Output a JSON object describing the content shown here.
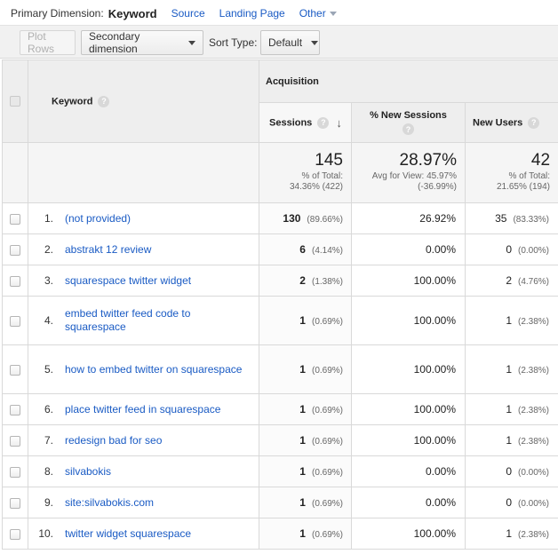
{
  "primary_dimension": {
    "label": "Primary Dimension:",
    "current": "Keyword",
    "links": [
      "Source",
      "Landing Page"
    ],
    "other": "Other"
  },
  "toolbar": {
    "plot_rows": "Plot Rows",
    "secondary_dimension": "Secondary dimension",
    "sort_type_label": "Sort Type:",
    "sort_type_value": "Default"
  },
  "headers": {
    "keyword": "Keyword",
    "group": "Acquisition",
    "sessions": "Sessions",
    "new_sessions": "% New Sessions",
    "new_users": "New Users",
    "help": "?"
  },
  "totals": {
    "sessions": "145",
    "sessions_sub1": "% of Total:",
    "sessions_sub2": "34.36% (422)",
    "new_sessions": "28.97%",
    "new_sessions_sub1": "Avg for View: 45.97%",
    "new_sessions_sub2": "(-36.99%)",
    "new_users": "42",
    "new_users_sub1": "% of Total:",
    "new_users_sub2": "21.65% (194)"
  },
  "rows": [
    {
      "idx": "1.",
      "keyword": "(not provided)",
      "sessions": "130",
      "sessions_pct": "(89.66%)",
      "new_sessions": "26.92%",
      "new_users": "35",
      "new_users_pct": "(83.33%)"
    },
    {
      "idx": "2.",
      "keyword": "abstrakt 12 review",
      "sessions": "6",
      "sessions_pct": "(4.14%)",
      "new_sessions": "0.00%",
      "new_users": "0",
      "new_users_pct": "(0.00%)"
    },
    {
      "idx": "3.",
      "keyword": "squarespace twitter widget",
      "sessions": "2",
      "sessions_pct": "(1.38%)",
      "new_sessions": "100.00%",
      "new_users": "2",
      "new_users_pct": "(4.76%)"
    },
    {
      "idx": "4.",
      "keyword": "embed twitter feed code to squarespace",
      "sessions": "1",
      "sessions_pct": "(0.69%)",
      "new_sessions": "100.00%",
      "new_users": "1",
      "new_users_pct": "(2.38%)"
    },
    {
      "idx": "5.",
      "keyword": "how to embed twitter on squarespace",
      "sessions": "1",
      "sessions_pct": "(0.69%)",
      "new_sessions": "100.00%",
      "new_users": "1",
      "new_users_pct": "(2.38%)"
    },
    {
      "idx": "6.",
      "keyword": "place twitter feed in squarespace",
      "sessions": "1",
      "sessions_pct": "(0.69%)",
      "new_sessions": "100.00%",
      "new_users": "1",
      "new_users_pct": "(2.38%)"
    },
    {
      "idx": "7.",
      "keyword": "redesign bad for seo",
      "sessions": "1",
      "sessions_pct": "(0.69%)",
      "new_sessions": "100.00%",
      "new_users": "1",
      "new_users_pct": "(2.38%)"
    },
    {
      "idx": "8.",
      "keyword": "silvabokis",
      "sessions": "1",
      "sessions_pct": "(0.69%)",
      "new_sessions": "0.00%",
      "new_users": "0",
      "new_users_pct": "(0.00%)"
    },
    {
      "idx": "9.",
      "keyword": "site:silvabokis.com",
      "sessions": "1",
      "sessions_pct": "(0.69%)",
      "new_sessions": "0.00%",
      "new_users": "0",
      "new_users_pct": "(0.00%)"
    },
    {
      "idx": "10.",
      "keyword": "twitter widget squarespace",
      "sessions": "1",
      "sessions_pct": "(0.69%)",
      "new_sessions": "100.00%",
      "new_users": "1",
      "new_users_pct": "(2.38%)"
    }
  ]
}
